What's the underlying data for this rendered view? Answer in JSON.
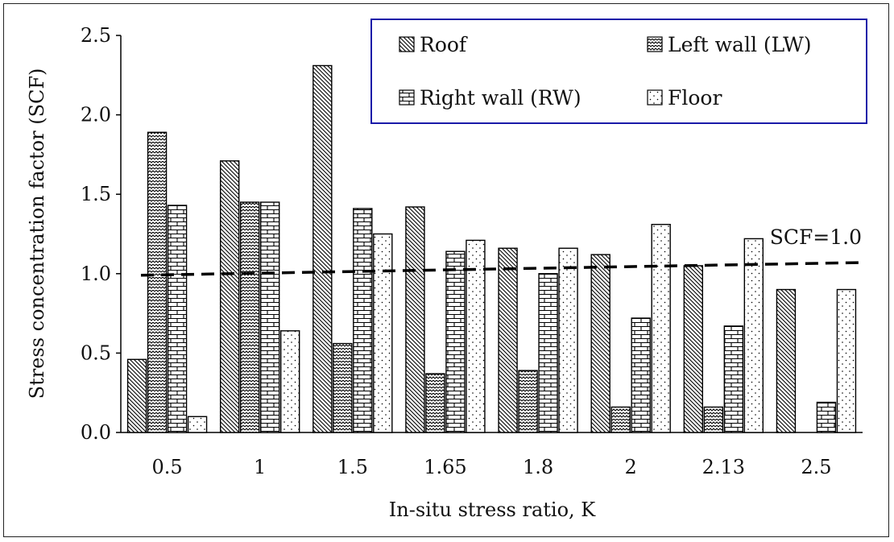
{
  "chart_data": {
    "type": "bar",
    "title": "",
    "xlabel": "In-situ stress ratio, K",
    "ylabel": "Stress concentration factor (SCF)",
    "categories": [
      "0.5",
      "1",
      "1.5",
      "1.65",
      "1.8",
      "2",
      "2.13",
      "2.5"
    ],
    "ylim": [
      0,
      2.5
    ],
    "yticks": [
      "0.0",
      "0.5",
      "1.0",
      "1.5",
      "2.0",
      "2.5"
    ],
    "series": [
      {
        "name": "Roof",
        "values": [
          0.46,
          1.71,
          2.31,
          1.42,
          1.16,
          1.12,
          1.05,
          0.9
        ]
      },
      {
        "name": "Left wall (LW)",
        "values": [
          1.89,
          1.45,
          0.56,
          0.37,
          0.39,
          0.16,
          0.16,
          0.0
        ]
      },
      {
        "name": "Right wall (RW)",
        "values": [
          1.43,
          1.45,
          1.41,
          1.14,
          1.0,
          0.72,
          0.67,
          0.19
        ]
      },
      {
        "name": "Floor",
        "values": [
          0.1,
          0.64,
          1.25,
          1.21,
          1.16,
          1.31,
          1.22,
          0.9
        ]
      }
    ],
    "reference_line": {
      "label": "SCF=1.0",
      "y_start": 0.99,
      "y_end": 1.07
    },
    "legend": {
      "position": "top-right",
      "border_color": "#1a1aa8"
    },
    "grid": false
  }
}
